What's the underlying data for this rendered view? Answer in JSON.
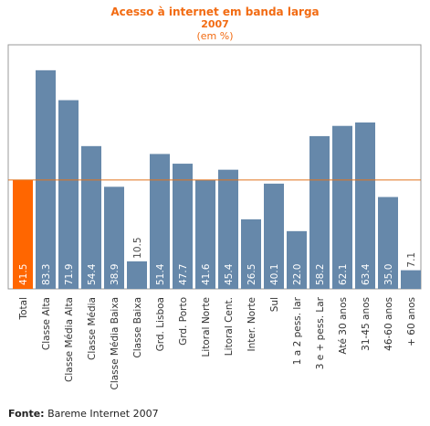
{
  "chart_data": {
    "type": "bar",
    "title": "Acesso à internet em banda larga",
    "subtitle": "2007",
    "unit_label": "(em %)",
    "categories": [
      "Total",
      "Classe Alta",
      "Classe Média Alta",
      "Classe Média",
      "Classe Média Baixa",
      "Classe Baixa",
      "Grd. Lisboa",
      "Grd. Porto",
      "Litoral Norte",
      "Litoral Cent.",
      "Inter. Norte",
      "Sul",
      "1 a 2 pess. lar",
      "3 e + pess. Lar",
      "Até 30 anos",
      "31-45 anos",
      "46-60 anos",
      "+ 60 anos"
    ],
    "values": [
      41.5,
      83.3,
      71.9,
      54.4,
      38.9,
      10.5,
      51.4,
      47.7,
      41.6,
      45.4,
      26.5,
      40.1,
      22.0,
      58.2,
      62.1,
      63.4,
      35.0,
      7.1
    ],
    "value_labels": [
      "41.5",
      "83.3",
      "71.9",
      "54.4",
      "38.9",
      "10.5",
      "51.4",
      "47.7",
      "41.6",
      "45.4",
      "26.5",
      "40.1",
      "22.0",
      "58.2",
      "62.1",
      "63.4",
      "35.0",
      "7.1"
    ],
    "reference_value": 41.5,
    "ylim": [
      0,
      93
    ],
    "colors": {
      "highlight": "#ff6600",
      "bar": "#6688aa",
      "reference_line": "#e0731e",
      "axis_frame": "#999999",
      "value_text": "#ffffff",
      "value_text_outside": "#4a4a4a",
      "category_text": "#333333"
    }
  },
  "source": {
    "label": "Fonte:",
    "text": "Bareme Internet 2007"
  }
}
